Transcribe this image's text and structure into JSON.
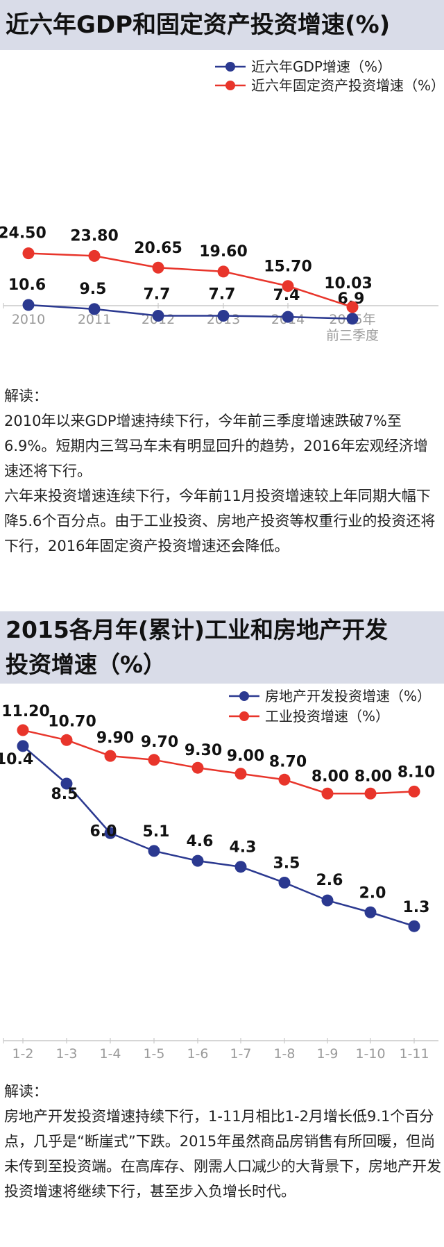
{
  "charts": [
    {
      "title": "近六年GDP和固定资产投资增速(%)",
      "interpretation": {
        "heading": "解读：",
        "paragraphs": [
          "2010年以来GDP增速持续下行，今年前三季度增速跌破7%至6.9%。短期内三驾马车未有明显回升的趋势，2016年宏观经济增速还将下行。",
          "六年来投资增速连续下行，今年前11月投资增速较上年同期大幅下降5.6个百分点。由于工业投资、房地产投资等权重行业的投资还将下行，2016年固定资产投资增速还会降低。"
        ]
      }
    },
    {
      "title": "2015各月年(累计)工业和房地产开发投资增速（%）",
      "title_lines": [
        "2015各月年(累计)工业和房地产开发",
        "投资增速（%）"
      ],
      "interpretation": {
        "heading": "解读：",
        "paragraphs": [
          "房地产开发投资增速持续下行，1-11月相比1-2月增长低9.1个百分点，几乎是“断崖式”下跌。2015年虽然商品房销售有所回暖，但尚未传到至投资端。在高库存、刚需人口减少的大背景下，房地产开发投资增速将继续下行，甚至步入负增长时代。"
        ]
      }
    }
  ],
  "chart_data": [
    {
      "type": "line",
      "title": "近六年GDP和固定资产投资增速(%)",
      "categories": [
        "2010",
        "2011",
        "2012",
        "2013",
        "2014",
        "2015年\n前三季度"
      ],
      "series": [
        {
          "name": "近六年GDP增速（%）",
          "color": "#2b3990",
          "values": [
            10.6,
            9.5,
            7.7,
            7.7,
            7.4,
            6.9
          ],
          "labels": [
            "10.6",
            "9.5",
            "7.7",
            "7.7",
            "7.4",
            "6.9"
          ]
        },
        {
          "name": "近六年固定资产投资增速（%）",
          "color": "#e8352b",
          "values": [
            24.5,
            23.8,
            20.65,
            19.6,
            15.7,
            10.03
          ],
          "labels": [
            "24.50",
            "23.80",
            "20.65",
            "19.60",
            "15.70",
            "10.03"
          ]
        }
      ],
      "legend": "top-right",
      "grid": false
    },
    {
      "type": "line",
      "title": "2015各月年(累计)工业和房地产开发投资增速（%）",
      "categories": [
        "1-2",
        "1-3",
        "1-4",
        "1-5",
        "1-6",
        "1-7",
        "1-8",
        "1-9",
        "1-10",
        "1-11"
      ],
      "series": [
        {
          "name": "房地产开发投资增速（%）",
          "color": "#2b3990",
          "values": [
            10.4,
            8.5,
            6.0,
            5.1,
            4.6,
            4.3,
            3.5,
            2.6,
            2.0,
            1.3
          ],
          "labels": [
            "10.4",
            "8.5",
            "6.0",
            "5.1",
            "4.6",
            "4.3",
            "3.5",
            "2.6",
            "2.0",
            "1.3"
          ]
        },
        {
          "name": "工业投资增速（%）",
          "color": "#e8352b",
          "values": [
            11.2,
            10.7,
            9.9,
            9.7,
            9.3,
            9.0,
            8.7,
            8.0,
            8.0,
            8.1
          ],
          "labels": [
            "11.20",
            "10.70",
            "9.90",
            "9.70",
            "9.30",
            "9.00",
            "8.70",
            "8.00",
            "8.00",
            "8.10"
          ]
        }
      ],
      "legend": "top-right",
      "grid": false
    }
  ]
}
